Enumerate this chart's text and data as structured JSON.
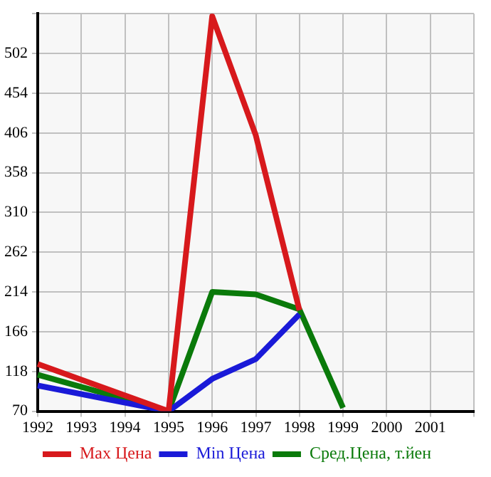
{
  "chart_data": {
    "type": "line",
    "categories": [
      "1992",
      "1993",
      "1994",
      "1995",
      "1996",
      "1997",
      "1998",
      "1999",
      "2000",
      "2001",
      null
    ],
    "series": [
      {
        "name": "Max Цена",
        "color": "#d7191c",
        "values": [
          127,
          null,
          null,
          70,
          547,
          403,
          192,
          null,
          null,
          null,
          null
        ]
      },
      {
        "name": "Min Цена",
        "color": "#1a1ad8",
        "values": [
          101,
          null,
          null,
          70,
          109,
          133,
          187,
          null,
          null,
          null,
          null
        ]
      },
      {
        "name": "Сред.Цена, т.йен",
        "color": "#0a7a0a",
        "values": [
          114,
          null,
          null,
          70,
          214,
          211,
          193,
          74,
          null,
          null,
          null
        ]
      }
    ],
    "ylim": [
      70,
      550
    ],
    "yticks": [
      70,
      118,
      166,
      214,
      262,
      310,
      358,
      406,
      454,
      502,
      {
        "value": 550,
        "label": null
      }
    ],
    "grid": true,
    "legend": "bottom",
    "marker": "none",
    "line_style": "solid"
  }
}
